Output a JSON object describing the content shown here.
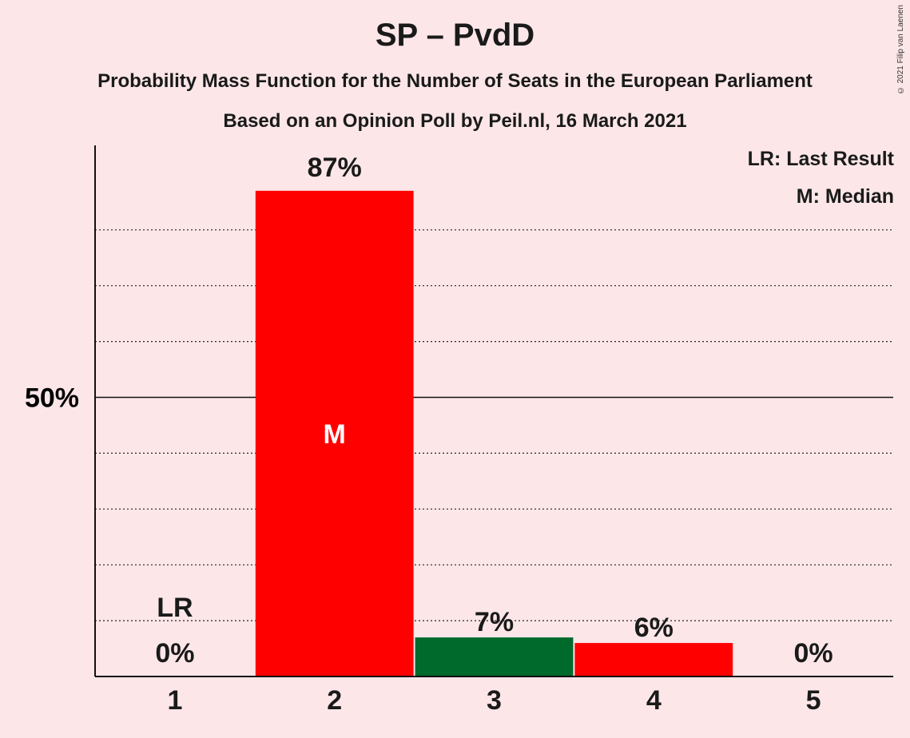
{
  "header": {
    "title": "SP – PvdD",
    "subtitle": "Probability Mass Function for the Number of Seats in the European Parliament",
    "source": "Based on an Opinion Poll by Peil.nl, 16 March 2021",
    "credit": "© 2021 Filip van Laenen"
  },
  "legend": {
    "last_result": "LR: Last Result",
    "median": "M: Median"
  },
  "chart_data": {
    "type": "bar",
    "categories": [
      "1",
      "2",
      "3",
      "4",
      "5"
    ],
    "values": [
      0,
      87,
      7,
      6,
      0
    ],
    "labels": [
      "0%",
      "87%",
      "7%",
      "6%",
      "0%"
    ],
    "ylim": [
      0,
      95
    ],
    "yticks": [
      {
        "value": 50,
        "label": "50%"
      }
    ],
    "minor_gridlines": [
      10,
      20,
      30,
      40,
      60,
      70,
      80
    ],
    "median_category": "2",
    "median_mark": "M",
    "last_result_category": "1",
    "last_result_mark": "LR",
    "colors": {
      "1": "#ff0000",
      "2": "#ff0000",
      "3": "#006a2c",
      "4": "#ff0000",
      "5": "#ff0000"
    },
    "background": "#fce6e8"
  }
}
